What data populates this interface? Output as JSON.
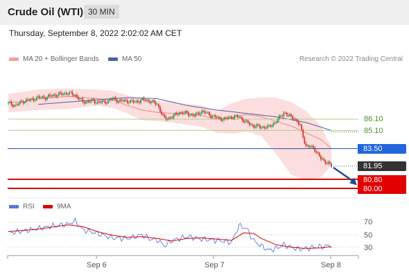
{
  "header": {
    "title": "Crude Oil (WTI)",
    "timeframe": "30 MIN"
  },
  "timestamp": "Thursday, September 8, 2022 2:02:02 AM CET",
  "legend": {
    "ma20": "MA 20 + Bollinger Bands",
    "ma50": "MA 50",
    "copyright": "Research © 2022 Trading Central",
    "rsi": "RSI",
    "rsi_ma": "9MA"
  },
  "colors": {
    "bullish": "#2e9b4a",
    "bearish": "#d93030",
    "bollinger_fill": "#fbd3d3",
    "ma20": "#f08080",
    "ma50": "#4a63a6",
    "support": "#dd0000",
    "resistance_green": "#a8d08d",
    "blue_level": "#1f4e99",
    "current_price": "#333333",
    "arrow": "#1f4e99",
    "rsi": "#5577dd",
    "rsi_ma": "#dd0000"
  },
  "levels": [
    {
      "value": "86.10",
      "type": "resistance",
      "style": "green-text"
    },
    {
      "value": "85.10",
      "type": "resistance",
      "style": "green-text"
    },
    {
      "value": "83.50",
      "type": "pivot",
      "style": "blue-tag"
    },
    {
      "value": "81.95",
      "type": "current",
      "style": "dark-tag"
    },
    {
      "value": "80.80",
      "type": "support",
      "style": "red-tag"
    },
    {
      "value": "80.00",
      "type": "support",
      "style": "red-tag"
    }
  ],
  "chart_data": [
    {
      "type": "candlestick",
      "x_labels": [
        "Sep 6",
        "Sep 7",
        "Sep 8"
      ],
      "ohlc": [],
      "ma20": [
        [
          0,
          87.6
        ],
        [
          10,
          87.6
        ],
        [
          20,
          87.9
        ],
        [
          30,
          88.0
        ],
        [
          40,
          88.1
        ],
        [
          50,
          88.0
        ],
        [
          60,
          87.9
        ],
        [
          70,
          87.8
        ],
        [
          80,
          87.3
        ],
        [
          90,
          86.9
        ],
        [
          100,
          86.7
        ],
        [
          110,
          86.6
        ],
        [
          120,
          86.6
        ],
        [
          130,
          86.4
        ],
        [
          140,
          86.1
        ],
        [
          150,
          86.2
        ],
        [
          155,
          86.4
        ],
        [
          160,
          86.5
        ],
        [
          170,
          86.3
        ],
        [
          180,
          85.9
        ],
        [
          190,
          85.5
        ],
        [
          200,
          84.9
        ],
        [
          210,
          84.3
        ],
        [
          217,
          83.5
        ]
      ],
      "ma50": [
        [
          20,
          87.4
        ],
        [
          40,
          87.6
        ],
        [
          60,
          87.8
        ],
        [
          80,
          88.0
        ],
        [
          100,
          87.9
        ],
        [
          120,
          87.3
        ],
        [
          140,
          86.9
        ],
        [
          160,
          86.6
        ],
        [
          180,
          86.3
        ],
        [
          200,
          85.8
        ],
        [
          217,
          85.1
        ]
      ],
      "bollinger_upper": [
        [
          0,
          88.3
        ],
        [
          20,
          88.7
        ],
        [
          40,
          88.8
        ],
        [
          60,
          88.7
        ],
        [
          70,
          88.6
        ],
        [
          80,
          88.2
        ],
        [
          90,
          87.9
        ],
        [
          100,
          87.7
        ],
        [
          110,
          87.6
        ],
        [
          130,
          87.3
        ],
        [
          140,
          86.8
        ],
        [
          150,
          87.5
        ],
        [
          160,
          87.9
        ],
        [
          170,
          88.0
        ],
        [
          180,
          88.0
        ],
        [
          190,
          87.6
        ],
        [
          200,
          86.8
        ],
        [
          210,
          85.5
        ],
        [
          217,
          83.6
        ]
      ],
      "bollinger_lower": [
        [
          0,
          86.7
        ],
        [
          20,
          86.9
        ],
        [
          40,
          87.0
        ],
        [
          60,
          87.3
        ],
        [
          70,
          87.1
        ],
        [
          80,
          86.6
        ],
        [
          90,
          86.0
        ],
        [
          100,
          85.9
        ],
        [
          110,
          85.8
        ],
        [
          130,
          85.4
        ],
        [
          140,
          84.9
        ],
        [
          150,
          84.8
        ],
        [
          160,
          85.0
        ],
        [
          170,
          84.6
        ],
        [
          180,
          83.0
        ],
        [
          190,
          81.2
        ],
        [
          200,
          80.7
        ],
        [
          210,
          81.0
        ],
        [
          217,
          82.0
        ]
      ]
    },
    {
      "type": "line",
      "name": "RSI",
      "y_ticks": [
        "70",
        "50",
        "30"
      ],
      "ylim": [
        20,
        80
      ],
      "rsi": [
        [
          0,
          53
        ],
        [
          10,
          56
        ],
        [
          20,
          60
        ],
        [
          30,
          64
        ],
        [
          40,
          67
        ],
        [
          45,
          72
        ],
        [
          50,
          58
        ],
        [
          60,
          52
        ],
        [
          70,
          45
        ],
        [
          80,
          44
        ],
        [
          90,
          50
        ],
        [
          95,
          43
        ],
        [
          100,
          42
        ],
        [
          105,
          32
        ],
        [
          110,
          41
        ],
        [
          120,
          47
        ],
        [
          130,
          43
        ],
        [
          140,
          41
        ],
        [
          150,
          38
        ],
        [
          155,
          65
        ],
        [
          160,
          60
        ],
        [
          165,
          40
        ],
        [
          170,
          32
        ],
        [
          175,
          25
        ],
        [
          180,
          28
        ],
        [
          185,
          34
        ],
        [
          190,
          30
        ],
        [
          195,
          27
        ],
        [
          200,
          28
        ],
        [
          205,
          30
        ],
        [
          210,
          31
        ],
        [
          217,
          33
        ]
      ],
      "rsi_ma": [
        [
          0,
          55
        ],
        [
          20,
          59
        ],
        [
          40,
          66
        ],
        [
          50,
          63
        ],
        [
          60,
          55
        ],
        [
          70,
          49
        ],
        [
          80,
          46
        ],
        [
          90,
          47
        ],
        [
          100,
          44
        ],
        [
          110,
          40
        ],
        [
          120,
          44
        ],
        [
          130,
          45
        ],
        [
          140,
          43
        ],
        [
          150,
          41
        ],
        [
          158,
          53
        ],
        [
          165,
          52
        ],
        [
          170,
          44
        ],
        [
          180,
          34
        ],
        [
          190,
          30
        ],
        [
          200,
          28
        ],
        [
          210,
          29
        ],
        [
          217,
          31
        ]
      ]
    }
  ]
}
